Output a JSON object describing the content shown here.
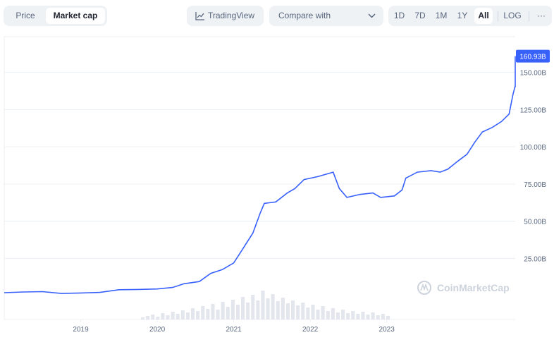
{
  "toolbar": {
    "chart_type_tabs": [
      {
        "label": "Price",
        "active": false
      },
      {
        "label": "Market cap",
        "active": true
      }
    ],
    "tradingview_label": "TradingView",
    "compare_label": "Compare with",
    "ranges": [
      {
        "label": "1D",
        "active": false
      },
      {
        "label": "7D",
        "active": false
      },
      {
        "label": "1M",
        "active": false
      },
      {
        "label": "1Y",
        "active": false
      },
      {
        "label": "All",
        "active": true
      }
    ],
    "log_label": "LOG",
    "more_label": "···"
  },
  "watermark": "CoinMarketCap",
  "current_value_label": "160.93B",
  "colors": {
    "line": "#3861fb",
    "badge": "#3861fb",
    "volume": "#e3e6ec",
    "grid": "#eceff3"
  },
  "chart_data": {
    "type": "line",
    "title": "",
    "xlabel": "",
    "ylabel": "",
    "y_unit": "B",
    "ylim": [
      -7,
      174
    ],
    "xlim": [
      2018.0,
      2024.68
    ],
    "y_ticks": [
      {
        "value": 25,
        "label": "25.00B"
      },
      {
        "value": 50,
        "label": "50.00B"
      },
      {
        "value": 75,
        "label": "75.00B"
      },
      {
        "value": 100,
        "label": "100.00B"
      },
      {
        "value": 125,
        "label": "125.00B"
      },
      {
        "value": 150,
        "label": "150.00B"
      }
    ],
    "x_ticks": [
      {
        "value": 2019,
        "label": "2019"
      },
      {
        "value": 2020,
        "label": "2020"
      },
      {
        "value": 2021,
        "label": "2021"
      },
      {
        "value": 2022,
        "label": "2022"
      },
      {
        "value": 2023,
        "label": "2023"
      }
    ],
    "grid": true,
    "series": [
      {
        "values": [
          [
            2018.0,
            2.0
          ],
          [
            2018.25,
            2.5
          ],
          [
            2018.5,
            2.7
          ],
          [
            2018.75,
            1.5
          ],
          [
            2019.0,
            1.8
          ],
          [
            2019.25,
            2.2
          ],
          [
            2019.5,
            4.0
          ],
          [
            2019.75,
            4.2
          ],
          [
            2020.0,
            4.5
          ],
          [
            2020.2,
            5.5
          ],
          [
            2020.35,
            8.0
          ],
          [
            2020.55,
            9.5
          ],
          [
            2020.7,
            15.0
          ],
          [
            2020.85,
            17.5
          ],
          [
            2021.0,
            22.0
          ],
          [
            2021.1,
            30.0
          ],
          [
            2021.25,
            42.0
          ],
          [
            2021.35,
            56.0
          ],
          [
            2021.4,
            62.0
          ],
          [
            2021.55,
            63.0
          ],
          [
            2021.7,
            69.0
          ],
          [
            2021.8,
            72.0
          ],
          [
            2021.92,
            78.0
          ],
          [
            2022.1,
            80.0
          ],
          [
            2022.3,
            83.0
          ],
          [
            2022.38,
            72.0
          ],
          [
            2022.48,
            66.0
          ],
          [
            2022.65,
            68.0
          ],
          [
            2022.82,
            69.0
          ],
          [
            2022.92,
            66.0
          ],
          [
            2023.1,
            67.0
          ],
          [
            2023.2,
            71.0
          ],
          [
            2023.25,
            79.0
          ],
          [
            2023.4,
            83.0
          ],
          [
            2023.58,
            84.0
          ],
          [
            2023.7,
            83.0
          ],
          [
            2023.8,
            85.0
          ],
          [
            2023.92,
            90.0
          ],
          [
            2024.05,
            95.0
          ],
          [
            2024.15,
            103.0
          ],
          [
            2024.25,
            110.0
          ],
          [
            2024.38,
            113.0
          ],
          [
            2024.5,
            117.0
          ],
          [
            2024.6,
            122.0
          ],
          [
            2024.65,
            135.0
          ],
          [
            2024.7,
            141.0
          ],
          [
            2024.78,
            140.0
          ],
          [
            2024.85,
            143.0
          ],
          [
            2024.93,
            146.0
          ],
          [
            2025.0,
            147.0
          ],
          [
            2025.07,
            153.0
          ],
          [
            2025.17,
            157.0
          ],
          [
            2025.2,
            160.9
          ]
        ]
      }
    ],
    "volume_series": [
      3,
      5,
      7,
      4,
      9,
      6,
      11,
      8,
      13,
      10,
      16,
      12,
      19,
      15,
      22,
      14,
      25,
      18,
      28,
      21,
      32,
      24,
      35,
      27,
      41,
      30,
      36,
      26,
      31,
      23,
      27,
      20,
      24,
      17,
      21,
      14,
      19,
      12,
      16,
      10,
      14,
      9,
      12,
      8,
      11,
      7,
      10,
      6,
      8,
      5
    ]
  }
}
